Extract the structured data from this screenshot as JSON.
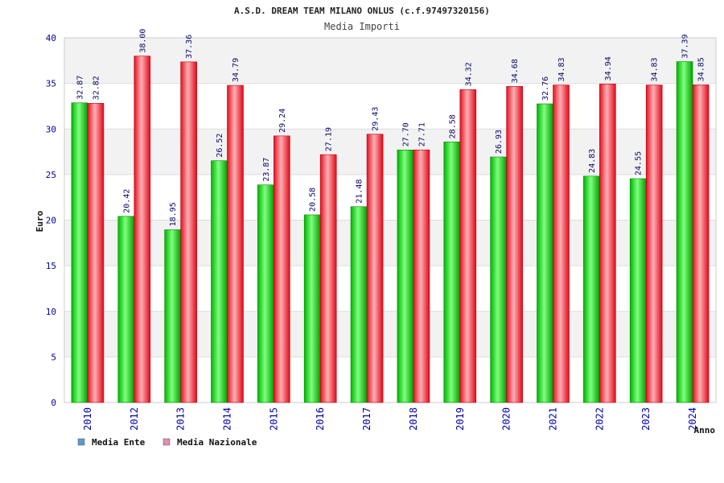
{
  "title": "A.S.D. DREAM TEAM MILANO ONLUS (c.f.97497320156)",
  "subtitle": "Media Importi",
  "colors": {
    "ente": "#00c800",
    "nazionale": "#ff1e28",
    "legend_ente": "#5b9bd5",
    "legend_nazionale": "#e08fb0"
  },
  "chart_data": {
    "type": "bar",
    "title": "A.S.D. DREAM TEAM MILANO ONLUS (c.f.97497320156)",
    "subtitle": "Media Importi",
    "xlabel": "Anno",
    "ylabel": "Euro",
    "ylim": [
      0,
      40
    ],
    "yticks": [
      0,
      5,
      10,
      15,
      20,
      25,
      30,
      35,
      40
    ],
    "categories": [
      "2010",
      "2012",
      "2013",
      "2014",
      "2015",
      "2016",
      "2017",
      "2018",
      "2019",
      "2020",
      "2021",
      "2022",
      "2023",
      "2024"
    ],
    "series": [
      {
        "name": "Media Ente",
        "values": [
          32.87,
          20.42,
          18.95,
          26.52,
          23.87,
          20.58,
          21.48,
          27.7,
          28.58,
          26.93,
          32.76,
          24.83,
          24.55,
          37.39
        ]
      },
      {
        "name": "Media Nazionale",
        "values": [
          32.82,
          38.0,
          37.36,
          34.79,
          29.24,
          27.19,
          29.43,
          27.71,
          34.32,
          34.68,
          34.83,
          34.94,
          34.83,
          34.85
        ]
      }
    ],
    "legend": [
      "Media Ente",
      "Media Nazionale"
    ],
    "grid": true
  }
}
